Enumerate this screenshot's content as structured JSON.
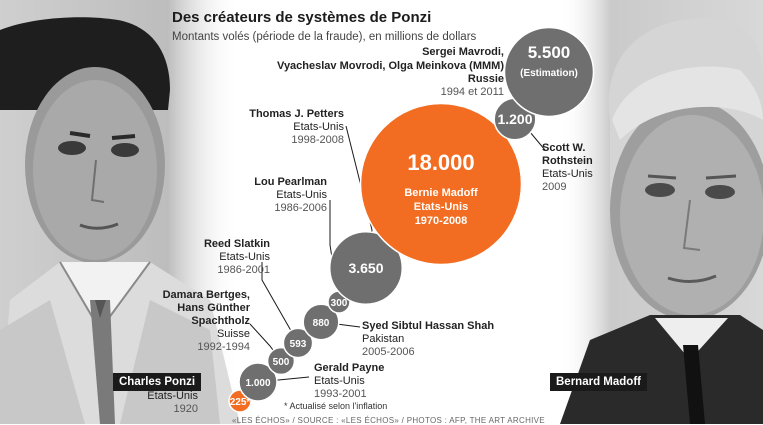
{
  "header": {
    "title": "Des créateurs de systèmes de Ponzi",
    "subtitle": "Montants volés (période de la fraude), en millions de dollars"
  },
  "portraits": [
    {
      "caption": "Charles Ponzi"
    },
    {
      "caption": "Bernard Madoff"
    }
  ],
  "footnote": "* Actualisé selon l'inflation",
  "source": "«LES ÉCHOS» / SOURCE : «LES ÉCHOS» / PHOTOS : AFP, THE ART ARCHIVE",
  "colors": {
    "orange": "#f26d21",
    "grey": "#6f6f6f",
    "connector": "#1a1a1a"
  },
  "chart_data": {
    "type": "bubble",
    "title": "Des créateurs de systèmes de Ponzi",
    "subtitle": "Montants volés (période de la fraude), en millions de dollars",
    "points": [
      {
        "label": "225*",
        "value": 225,
        "names": "Charles Ponzi",
        "country": "Etats-Unis",
        "period": "1920",
        "color": "orange"
      },
      {
        "label": "1.000",
        "value": 1000,
        "names": "Gerald Payne",
        "country": "Etats-Unis",
        "period": "1993-2001",
        "color": "grey"
      },
      {
        "label": "500",
        "value": 500,
        "names": "Damara Bertges, Hans Günther Spachtholz",
        "country": "Suisse",
        "period": "1992-1994",
        "color": "grey"
      },
      {
        "label": "593",
        "value": 593,
        "names": "Reed Slatkin",
        "country": "Etats-Unis",
        "period": "1986-2001",
        "color": "grey"
      },
      {
        "label": "880",
        "value": 880,
        "names": "Syed Sibtul Hassan Shah",
        "country": "Pakistan",
        "period": "2005-2006",
        "color": "grey"
      },
      {
        "label": "300",
        "value": 300,
        "names": "Lou Pearlman",
        "country": "Etats-Unis",
        "period": "1986-2006",
        "color": "grey"
      },
      {
        "label": "3.650",
        "value": 3650,
        "names": "Thomas J. Petters",
        "country": "Etats-Unis",
        "period": "1998-2008",
        "color": "grey"
      },
      {
        "label": "18.000",
        "value": 18000,
        "names": "Bernie Madoff",
        "country": "Etats-Unis",
        "period": "1970-2008",
        "color": "orange"
      },
      {
        "label": "1.200",
        "value": 1200,
        "names": "Scott W. Rothstein",
        "country": "Etats-Unis",
        "period": "2009",
        "color": "grey"
      },
      {
        "label": "5.500",
        "value": 5500,
        "sublabel": "(Estimation)",
        "names": "Sergei Mavrodi, Vyacheslav Movrodi, Olga Meinkova (MMM)",
        "country": "Russie",
        "period": "1994 et 2011",
        "color": "grey"
      }
    ]
  },
  "labels": {
    "ponzi": {
      "name": "Charles Ponzi",
      "country": "Etats-Unis",
      "period": "1920"
    },
    "payne": {
      "name": "Gerald Payne",
      "country": "Etats-Unis",
      "period": "1993-2001"
    },
    "bertges": {
      "name1": "Damara Bertges,",
      "name2": "Hans Günther",
      "name3": "Spachtholz",
      "country": "Suisse",
      "period": "1992-1994"
    },
    "slatkin": {
      "name": "Reed Slatkin",
      "country": "Etats-Unis",
      "period": "1986-2001"
    },
    "shah": {
      "name": "Syed Sibtul Hassan Shah",
      "country": "Pakistan",
      "period": "2005-2006"
    },
    "pearlman": {
      "name": "Lou Pearlman",
      "country": "Etats-Unis",
      "period": "1986-2006"
    },
    "petters": {
      "name": "Thomas J. Petters",
      "country": "Etats-Unis",
      "period": "1998-2008"
    },
    "madoff": {
      "name1": "Bernie Madoff",
      "country": "Etats-Unis",
      "period": "1970-2008"
    },
    "rothstein": {
      "name1": "Scott W.",
      "name2": "Rothstein",
      "country": "Etats-Unis",
      "period": "2009"
    },
    "mavrodi": {
      "name1": "Sergei Mavrodi,",
      "name2": "Vyacheslav Movrodi, Olga Meinkova (MMM)",
      "country": "Russie",
      "period": "1994 et 2011"
    }
  }
}
